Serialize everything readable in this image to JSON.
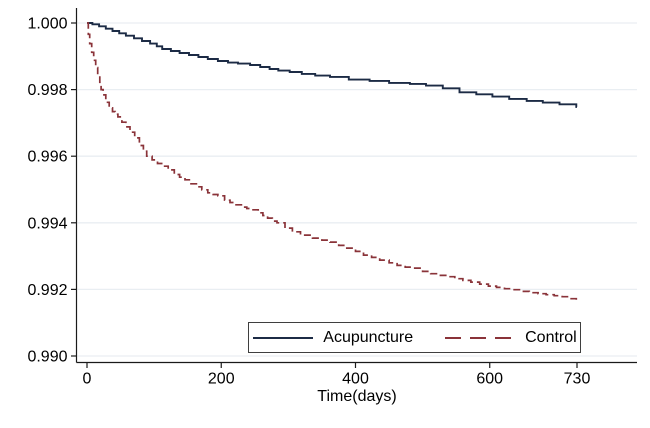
{
  "colors": {
    "acupuncture_line": "#1c2b45",
    "control_line": "#8a3339",
    "gridline": "#e9eef2",
    "axis": "#1a1a1a",
    "text": "#000000",
    "background": "#ffffff",
    "legend_border": "#3f3f3f"
  },
  "legend": {
    "items": [
      {
        "label": "Acupuncture",
        "style": "solid"
      },
      {
        "label": "Control",
        "style": "dashed"
      }
    ]
  },
  "chart_data": {
    "type": "line",
    "subtype": "kaplan-meier-step",
    "title": "",
    "xlabel": "Time(days)",
    "ylabel": "",
    "xlim": [
      0,
      730
    ],
    "ylim": [
      0.99,
      1.0
    ],
    "xticks": {
      "values": [
        0,
        200,
        400,
        600,
        730
      ],
      "labels": [
        "0",
        "200",
        "400",
        "600",
        "730"
      ]
    },
    "yticks": {
      "values": [
        1.0,
        0.998,
        0.996,
        0.994,
        0.992,
        0.99
      ],
      "labels": [
        "1.000",
        "0.998",
        "0.996",
        "0.994",
        "0.992",
        "0.990"
      ]
    },
    "grid": "horizontal-only",
    "legend_position": "inside-bottom-right",
    "series": [
      {
        "name": "Acupuncture",
        "style": "solid",
        "color": "#1c2b45",
        "points": [
          [
            0,
            1.0
          ],
          [
            8,
            0.99996
          ],
          [
            18,
            0.9999
          ],
          [
            28,
            0.99983
          ],
          [
            38,
            0.99976
          ],
          [
            48,
            0.99969
          ],
          [
            58,
            0.99962
          ],
          [
            70,
            0.99954
          ],
          [
            82,
            0.99946
          ],
          [
            94,
            0.99938
          ],
          [
            104,
            0.9993
          ],
          [
            112,
            0.99922
          ],
          [
            125,
            0.99916
          ],
          [
            138,
            0.9991
          ],
          [
            152,
            0.99904
          ],
          [
            166,
            0.99898
          ],
          [
            180,
            0.99892
          ],
          [
            195,
            0.99886
          ],
          [
            210,
            0.99881
          ],
          [
            225,
            0.99878
          ],
          [
            243,
            0.99874
          ],
          [
            258,
            0.99868
          ],
          [
            272,
            0.99862
          ],
          [
            285,
            0.99857
          ],
          [
            302,
            0.99853
          ],
          [
            320,
            0.99847
          ],
          [
            340,
            0.99842
          ],
          [
            362,
            0.99838
          ],
          [
            390,
            0.9983
          ],
          [
            421,
            0.99826
          ],
          [
            450,
            0.9982
          ],
          [
            481,
            0.99817
          ],
          [
            505,
            0.99812
          ],
          [
            530,
            0.99804
          ],
          [
            555,
            0.99792
          ],
          [
            580,
            0.99786
          ],
          [
            604,
            0.99779
          ],
          [
            629,
            0.99772
          ],
          [
            655,
            0.99766
          ],
          [
            679,
            0.99761
          ],
          [
            704,
            0.99756
          ],
          [
            729,
            0.99748
          ],
          [
            730,
            0.99748
          ]
        ]
      },
      {
        "name": "Control",
        "style": "dashed",
        "color": "#8a3339",
        "points": [
          [
            0,
            1.0
          ],
          [
            2,
            0.99966
          ],
          [
            4,
            0.99938
          ],
          [
            7,
            0.99912
          ],
          [
            10,
            0.99888
          ],
          [
            13,
            0.99866
          ],
          [
            16,
            0.99845
          ],
          [
            19,
            0.99822
          ],
          [
            21,
            0.998
          ],
          [
            24,
            0.99784
          ],
          [
            28,
            0.99762
          ],
          [
            33,
            0.99745
          ],
          [
            38,
            0.99734
          ],
          [
            42,
            0.99726
          ],
          [
            46,
            0.99718
          ],
          [
            52,
            0.99702
          ],
          [
            58,
            0.99688
          ],
          [
            64,
            0.99672
          ],
          [
            71,
            0.99655
          ],
          [
            78,
            0.99632
          ],
          [
            84,
            0.99615
          ],
          [
            89,
            0.996
          ],
          [
            97,
            0.99589
          ],
          [
            105,
            0.99578
          ],
          [
            113,
            0.9957
          ],
          [
            121,
            0.99559
          ],
          [
            130,
            0.99545
          ],
          [
            138,
            0.99537
          ],
          [
            146,
            0.99529
          ],
          [
            155,
            0.99517
          ],
          [
            163,
            0.99508
          ],
          [
            171,
            0.99499
          ],
          [
            180,
            0.9949
          ],
          [
            188,
            0.99485
          ],
          [
            195,
            0.99481
          ],
          [
            205,
            0.99468
          ],
          [
            213,
            0.99461
          ],
          [
            220,
            0.99454
          ],
          [
            230,
            0.99447
          ],
          [
            238,
            0.99443
          ],
          [
            246,
            0.99439
          ],
          [
            255,
            0.9943
          ],
          [
            262,
            0.99422
          ],
          [
            269,
            0.99414
          ],
          [
            276,
            0.99405
          ],
          [
            283,
            0.994
          ],
          [
            295,
            0.99384
          ],
          [
            306,
            0.99373
          ],
          [
            318,
            0.99363
          ],
          [
            336,
            0.99354
          ],
          [
            350,
            0.99348
          ],
          [
            362,
            0.99342
          ],
          [
            375,
            0.99332
          ],
          [
            387,
            0.99324
          ],
          [
            400,
            0.99314
          ],
          [
            412,
            0.99303
          ],
          [
            424,
            0.99296
          ],
          [
            436,
            0.99288
          ],
          [
            450,
            0.9928
          ],
          [
            462,
            0.99272
          ],
          [
            474,
            0.99267
          ],
          [
            485,
            0.99264
          ],
          [
            500,
            0.99254
          ],
          [
            512,
            0.99247
          ],
          [
            524,
            0.99242
          ],
          [
            536,
            0.99238
          ],
          [
            548,
            0.99232
          ],
          [
            560,
            0.99227
          ],
          [
            572,
            0.99222
          ],
          [
            585,
            0.99216
          ],
          [
            598,
            0.9921
          ],
          [
            610,
            0.99206
          ],
          [
            622,
            0.99202
          ],
          [
            634,
            0.99199
          ],
          [
            647,
            0.99194
          ],
          [
            659,
            0.9919
          ],
          [
            672,
            0.99187
          ],
          [
            684,
            0.99184
          ],
          [
            696,
            0.99181
          ],
          [
            708,
            0.99178
          ],
          [
            718,
            0.99172
          ],
          [
            729,
            0.99163
          ],
          [
            730,
            0.99163
          ]
        ]
      }
    ]
  }
}
